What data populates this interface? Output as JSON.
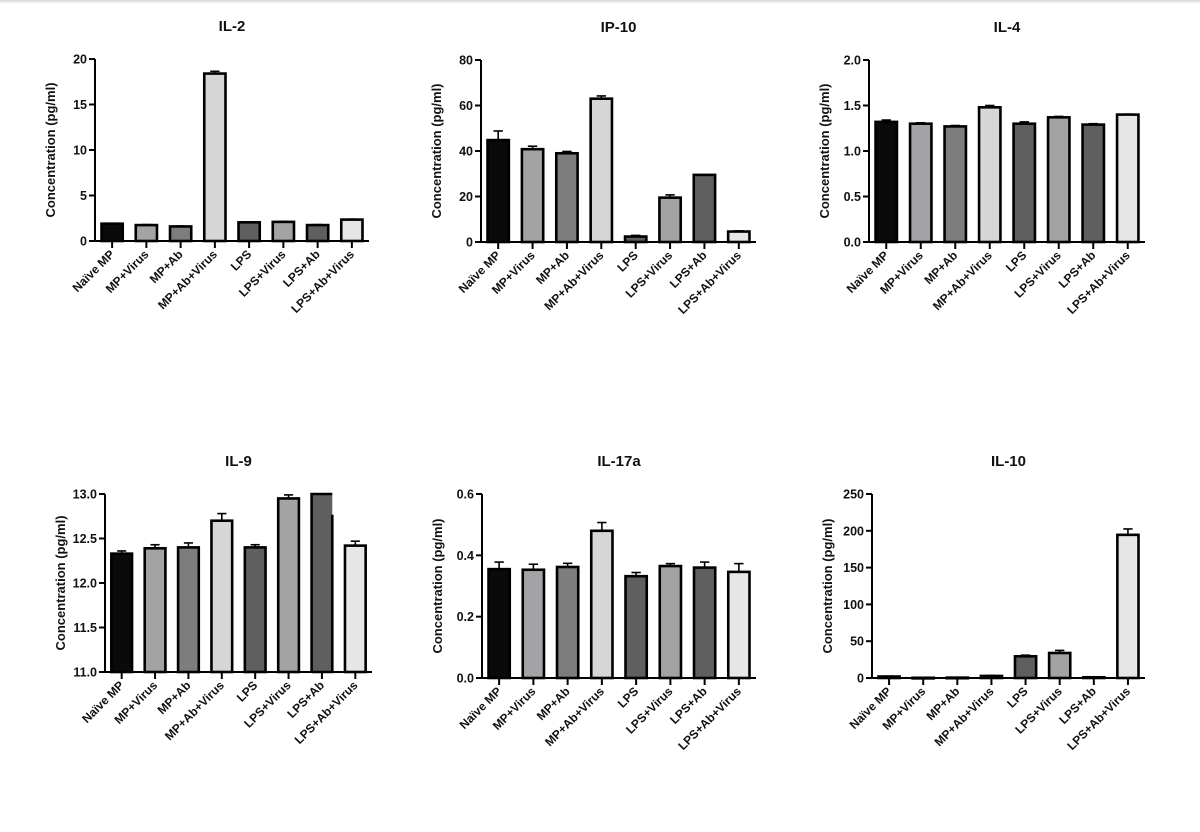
{
  "figure": {
    "categories": [
      "Naïve MP",
      "MP+Virus",
      "MP+Ab",
      "MP+Ab+Virus",
      "LPS",
      "LPS+Virus",
      "LPS+Ab",
      "LPS+Ab+Virus"
    ],
    "bar_colors": [
      "#0a0a0a",
      "#a3a3a6",
      "#7d7d7d",
      "#d6d6d6",
      "#5f5f5f",
      "#a3a3a6",
      "#5f5f5f",
      "#e6e6e6"
    ]
  },
  "chart_data": [
    {
      "type": "bar",
      "title": "IL-2",
      "xlabel": "",
      "ylabel": "Concentration (pg/ml)",
      "ylim": [
        0,
        20
      ],
      "yticks": [
        "0",
        "5",
        "10",
        "15",
        "20"
      ],
      "ytick_values": [
        0,
        5,
        10,
        15,
        20
      ],
      "categories": [
        "Naïve MP",
        "MP+Virus",
        "MP+Ab",
        "MP+Ab+Virus",
        "LPS",
        "LPS+Virus",
        "LPS+Ab",
        "LPS+Ab+Virus"
      ],
      "values": [
        1.9,
        1.75,
        1.6,
        18.4,
        2.05,
        2.1,
        1.75,
        2.35
      ],
      "errors": [
        0.05,
        0.05,
        0.05,
        0.25,
        0.05,
        0.05,
        0.05,
        0.05
      ]
    },
    {
      "type": "bar",
      "title": "IP-10",
      "xlabel": "",
      "ylabel": "Concentration (pg/ml)",
      "ylim": [
        0,
        80
      ],
      "yticks": [
        "0",
        "20",
        "40",
        "60",
        "80"
      ],
      "ytick_values": [
        0,
        20,
        40,
        60,
        80
      ],
      "categories": [
        "Naïve MP",
        "MP+Virus",
        "MP+Ab",
        "MP+Ab+Virus",
        "LPS",
        "LPS+Virus",
        "LPS+Ab",
        "LPS+Ab+Virus"
      ],
      "values": [
        44.8,
        40.8,
        39.0,
        63.0,
        2.4,
        19.5,
        29.5,
        4.6
      ],
      "errors": [
        4.0,
        1.3,
        0.8,
        1.2,
        0.5,
        1.2,
        0,
        0.3
      ]
    },
    {
      "type": "bar",
      "title": "IL-4",
      "xlabel": "",
      "ylabel": "Concentration (pg/ml)",
      "ylim": [
        0,
        2.0
      ],
      "yticks": [
        "0.0",
        "0.5",
        "1.0",
        "1.5",
        "2.0"
      ],
      "ytick_values": [
        0,
        0.5,
        1.0,
        1.5,
        2.0
      ],
      "categories": [
        "Naïve MP",
        "MP+Virus",
        "MP+Ab",
        "MP+Ab+Virus",
        "LPS",
        "LPS+Virus",
        "LPS+Ab",
        "LPS+Ab+Virus"
      ],
      "values": [
        1.32,
        1.3,
        1.27,
        1.48,
        1.3,
        1.37,
        1.29,
        1.4
      ],
      "errors": [
        0.02,
        0.01,
        0.01,
        0.02,
        0.02,
        0.01,
        0.01,
        0.005
      ]
    },
    {
      "type": "bar",
      "title": "IL-9",
      "xlabel": "",
      "ylabel": "Concentration (pg/ml)",
      "ylim": [
        11.0,
        13.0
      ],
      "yticks": [
        "11.0",
        "11.5",
        "12.0",
        "12.5",
        "13.0"
      ],
      "ytick_values": [
        11.0,
        11.5,
        12.0,
        12.5,
        13.0
      ],
      "categories": [
        "Naïve MP",
        "MP+Virus",
        "MP+Ab",
        "MP+Ab+Virus",
        "LPS",
        "LPS+Virus",
        "LPS+Ab",
        "LPS+Ab+Virus"
      ],
      "values": [
        12.33,
        12.39,
        12.4,
        12.7,
        12.4,
        12.95,
        13.05,
        12.42
      ],
      "errors": [
        0.03,
        0.04,
        0.05,
        0.08,
        0.03,
        0.04,
        0,
        0.05
      ]
    },
    {
      "type": "bar",
      "title": "IL-17a",
      "xlabel": "",
      "ylabel": "Concentration (pg/ml)",
      "ylim": [
        0,
        0.6
      ],
      "yticks": [
        "0.0",
        "0.2",
        "0.4",
        "0.6"
      ],
      "ytick_values": [
        0,
        0.2,
        0.4,
        0.6
      ],
      "categories": [
        "Naïve MP",
        "MP+Virus",
        "MP+Ab",
        "MP+Ab+Virus",
        "LPS",
        "LPS+Virus",
        "LPS+Ab",
        "LPS+Ab+Virus"
      ],
      "values": [
        0.355,
        0.353,
        0.362,
        0.48,
        0.332,
        0.365,
        0.36,
        0.346
      ],
      "errors": [
        0.023,
        0.018,
        0.012,
        0.027,
        0.012,
        0.008,
        0.018,
        0.027
      ]
    },
    {
      "type": "bar",
      "title": "IL-10",
      "xlabel": "",
      "ylabel": "Concentration (pg/ml)",
      "ylim": [
        0,
        250
      ],
      "yticks": [
        "0",
        "50",
        "100",
        "150",
        "200",
        "250"
      ],
      "ytick_values": [
        0,
        50,
        100,
        150,
        200,
        250
      ],
      "categories": [
        "Naïve MP",
        "MP+Virus",
        "MP+Ab",
        "MP+Ab+Virus",
        "LPS",
        "LPS+Virus",
        "LPS+Ab",
        "LPS+Ab+Virus"
      ],
      "values": [
        2.0,
        0.3,
        0.5,
        2.8,
        29.5,
        34.0,
        1.0,
        194.5
      ],
      "errors": [
        0.5,
        0,
        0,
        0.6,
        1.5,
        3.5,
        0,
        8.0
      ]
    }
  ]
}
